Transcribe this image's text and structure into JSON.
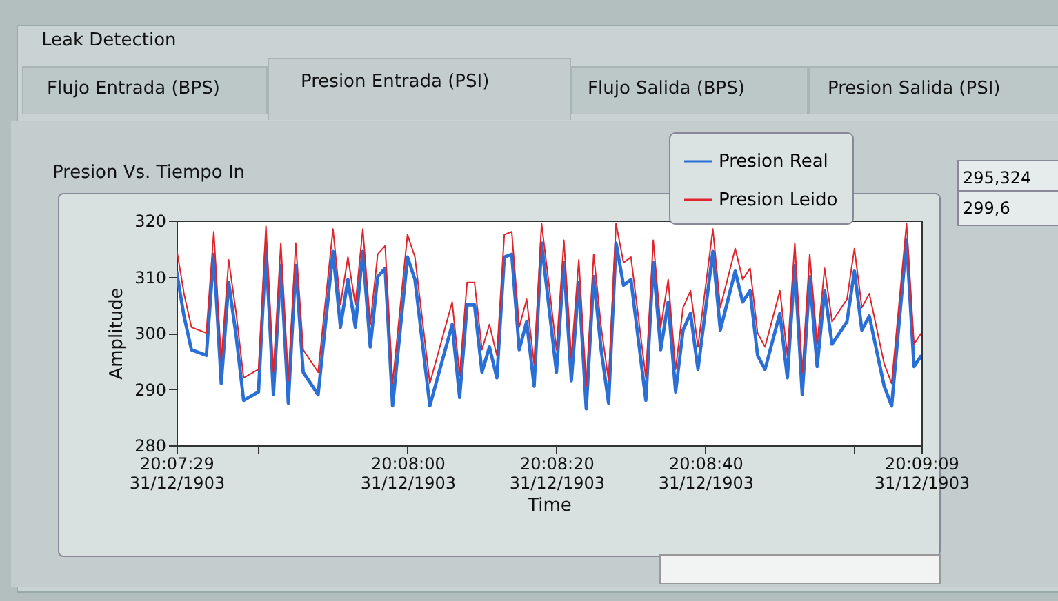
{
  "chart_data": {
    "type": "line",
    "title": "Presion Vs. Tiempo In",
    "xlabel": "Time",
    "ylabel": "Amplitude",
    "annotations": [
      "Leak Detection",
      "Flujo Entrada (BPS)",
      "Presion Entrada (PSI)",
      "Flujo Salida (BPS)",
      "Presion Salida (PSI)",
      "295,324",
      "299,6"
    ],
    "x": [
      "1903-12-31T20:07:29",
      "1903-12-31T20:07:30",
      "1903-12-31T20:07:31",
      "1903-12-31T20:07:33",
      "1903-12-31T20:07:34",
      "1903-12-31T20:07:35",
      "1903-12-31T20:07:36",
      "1903-12-31T20:07:37",
      "1903-12-31T20:07:38",
      "1903-12-31T20:07:40",
      "1903-12-31T20:07:41",
      "1903-12-31T20:07:42",
      "1903-12-31T20:07:43",
      "1903-12-31T20:07:44",
      "1903-12-31T20:07:45",
      "1903-12-31T20:07:46",
      "1903-12-31T20:07:48",
      "1903-12-31T20:07:50",
      "1903-12-31T20:07:51",
      "1903-12-31T20:07:52",
      "1903-12-31T20:07:53",
      "1903-12-31T20:07:54",
      "1903-12-31T20:07:55",
      "1903-12-31T20:07:56",
      "1903-12-31T20:07:57",
      "1903-12-31T20:07:58",
      "1903-12-31T20:08:00",
      "1903-12-31T20:08:01",
      "1903-12-31T20:08:03",
      "1903-12-31T20:08:06",
      "1903-12-31T20:08:07",
      "1903-12-31T20:08:08",
      "1903-12-31T20:08:09",
      "1903-12-31T20:08:10",
      "1903-12-31T20:08:11",
      "1903-12-31T20:08:12",
      "1903-12-31T20:08:13",
      "1903-12-31T20:08:14",
      "1903-12-31T20:08:15",
      "1903-12-31T20:08:16",
      "1903-12-31T20:08:17",
      "1903-12-31T20:08:18",
      "1903-12-31T20:08:19",
      "1903-12-31T20:08:20",
      "1903-12-31T20:08:21",
      "1903-12-31T20:08:22",
      "1903-12-31T20:08:23",
      "1903-12-31T20:08:24",
      "1903-12-31T20:08:25",
      "1903-12-31T20:08:26",
      "1903-12-31T20:08:27",
      "1903-12-31T20:08:28",
      "1903-12-31T20:08:29",
      "1903-12-31T20:08:30",
      "1903-12-31T20:08:32",
      "1903-12-31T20:08:33",
      "1903-12-31T20:08:34",
      "1903-12-31T20:08:35",
      "1903-12-31T20:08:36",
      "1903-12-31T20:08:37",
      "1903-12-31T20:08:38",
      "1903-12-31T20:08:39",
      "1903-12-31T20:08:41",
      "1903-12-31T20:08:42",
      "1903-12-31T20:08:44",
      "1903-12-31T20:08:45",
      "1903-12-31T20:08:46",
      "1903-12-31T20:08:47",
      "1903-12-31T20:08:48",
      "1903-12-31T20:08:50",
      "1903-12-31T20:08:51",
      "1903-12-31T20:08:52",
      "1903-12-31T20:08:53",
      "1903-12-31T20:08:54",
      "1903-12-31T20:08:55",
      "1903-12-31T20:08:56",
      "1903-12-31T20:08:57",
      "1903-12-31T20:08:59",
      "1903-12-31T20:09:00",
      "1903-12-31T20:09:01",
      "1903-12-31T20:09:02",
      "1903-12-31T20:09:04",
      "1903-12-31T20:09:05",
      "1903-12-31T20:09:07",
      "1903-12-31T20:09:08",
      "1903-12-31T20:09:09"
    ],
    "series": [
      {
        "name": "Presion Real",
        "color": "#2a6fd6",
        "values": [
          311,
          303,
          297,
          296,
          314,
          291,
          309,
          299.5,
          288,
          289.5,
          315,
          289,
          312,
          287.5,
          312,
          293,
          289,
          314.5,
          301,
          309.5,
          301,
          314.5,
          297.5,
          310,
          311.5,
          287,
          313.5,
          309.5,
          287,
          301.5,
          288.5,
          305,
          305,
          293,
          297.5,
          292,
          313.5,
          314,
          297,
          302,
          290.5,
          316,
          304.5,
          293,
          312.5,
          291.5,
          309,
          286.5,
          310,
          297,
          287.5,
          316,
          308.5,
          309.5,
          288,
          312.5,
          297,
          305.5,
          289.5,
          300.5,
          303.5,
          293.5,
          314.5,
          300.5,
          311,
          305.5,
          307.5,
          296,
          293.5,
          303.5,
          292,
          312,
          289,
          310,
          294,
          307.5,
          298,
          302,
          311,
          300.5,
          303,
          290.5,
          287,
          316.5,
          294,
          296
        ]
      },
      {
        "name": "Presion Leido",
        "color": "#e0242c",
        "values": [
          315,
          307,
          301,
          300,
          318,
          295,
          313,
          303.5,
          292,
          293.5,
          319,
          293,
          316,
          291.5,
          316,
          297,
          293,
          318.5,
          305,
          313.5,
          305,
          318.5,
          301.5,
          314,
          315.5,
          291,
          317.5,
          313.5,
          291,
          305.5,
          292.5,
          309,
          309,
          297,
          301.5,
          296,
          317.5,
          318,
          301,
          306,
          294.5,
          319.5,
          308.5,
          297,
          316.5,
          295.5,
          313,
          290.5,
          314,
          301,
          291.5,
          319.5,
          312.5,
          313.5,
          292,
          316.5,
          301,
          309.5,
          293.5,
          304.5,
          307.5,
          297.5,
          318.5,
          304.5,
          315,
          309.5,
          311.5,
          300,
          297.5,
          307.5,
          296,
          316,
          293,
          314,
          298,
          311.5,
          302,
          306,
          315,
          304.5,
          307,
          294.5,
          291,
          319.5,
          298,
          300
        ]
      }
    ],
    "xlim": [
      "1903-12-31T20:07:29",
      "1903-12-31T20:09:09"
    ],
    "xticks": [
      {
        "value": "1903-12-31T20:07:29",
        "label": "20:07:29 31/12/1903"
      },
      {
        "value": "1903-12-31T20:07:40",
        "label": null
      },
      {
        "value": "1903-12-31T20:08:00",
        "label": "20:08:00 31/12/1903"
      },
      {
        "value": "1903-12-31T20:08:20",
        "label": "20:08:20 31/12/1903"
      },
      {
        "value": "1903-12-31T20:08:40",
        "label": "20:08:40 31/12/1903"
      },
      {
        "value": "1903-12-31T20:09:00",
        "label": null
      },
      {
        "value": "1903-12-31T20:09:09",
        "label": "20:09:09 31/12/1903"
      }
    ],
    "ylim": [
      280,
      320
    ],
    "yticks": [
      280,
      290,
      300,
      310,
      320
    ],
    "grid": false,
    "legend": "top right"
  }
}
